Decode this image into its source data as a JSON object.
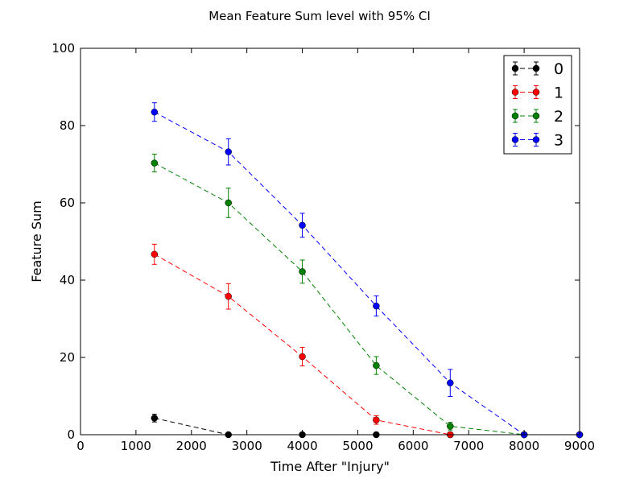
{
  "chart_data": {
    "type": "line",
    "title": "Mean Feature Sum level with 95% CI",
    "xlabel": "Time After \"Injury\"",
    "ylabel": "Feature Sum",
    "xlim": [
      0,
      9000
    ],
    "ylim": [
      0,
      100
    ],
    "xticks": [
      0,
      1000,
      2000,
      3000,
      4000,
      5000,
      6000,
      7000,
      8000,
      9000
    ],
    "yticks": [
      0,
      20,
      40,
      60,
      80,
      100
    ],
    "grid": false,
    "legend_position": "top-right",
    "x": [
      1333,
      2667,
      4000,
      5333,
      6667,
      8000,
      9000
    ],
    "series": [
      {
        "name": "0",
        "color": "#000000",
        "y": [
          4.3,
          0,
          0,
          0,
          0,
          0,
          0
        ],
        "err": [
          1.0,
          0,
          0,
          0,
          0,
          0,
          0
        ]
      },
      {
        "name": "1",
        "color": "#ff0000",
        "y": [
          46.7,
          35.8,
          20.2,
          3.8,
          0,
          0,
          0
        ],
        "err": [
          2.6,
          3.3,
          2.4,
          1.1,
          0,
          0,
          0
        ]
      },
      {
        "name": "2",
        "color": "#008000",
        "y": [
          70.3,
          60.0,
          42.2,
          17.9,
          2.2,
          0,
          0
        ],
        "err": [
          2.3,
          3.8,
          3.0,
          2.3,
          1.0,
          0,
          0
        ]
      },
      {
        "name": "3",
        "color": "#0000ff",
        "y": [
          83.5,
          73.2,
          54.2,
          33.3,
          13.4,
          0,
          0
        ],
        "err": [
          2.4,
          3.4,
          3.1,
          2.6,
          3.5,
          0,
          0
        ]
      }
    ]
  }
}
